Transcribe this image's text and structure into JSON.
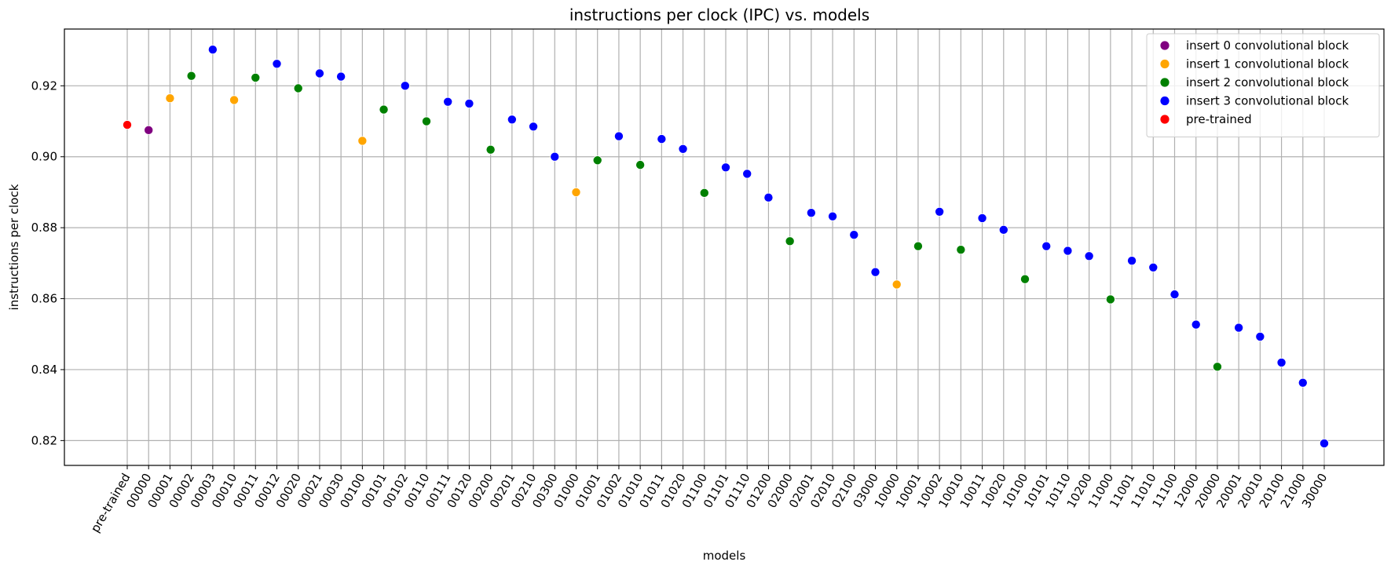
{
  "chart_data": {
    "type": "scatter",
    "title": "instructions per clock (IPC) vs. models",
    "xlabel": "models",
    "ylabel": "instructions per clock",
    "ylim": [
      0.813,
      0.936
    ],
    "yticks": [
      "0.82",
      "0.84",
      "0.86",
      "0.88",
      "0.90",
      "0.92"
    ],
    "grid": true,
    "legend_position": "top-right",
    "categories": [
      "pre-trained",
      "00000",
      "00001",
      "00002",
      "00003",
      "00010",
      "00011",
      "00012",
      "00020",
      "00021",
      "00030",
      "00100",
      "00101",
      "00102",
      "00110",
      "00111",
      "00120",
      "00200",
      "00201",
      "00210",
      "00300",
      "01000",
      "01001",
      "01002",
      "01010",
      "01011",
      "01020",
      "01100",
      "01101",
      "01110",
      "01200",
      "02000",
      "02001",
      "02010",
      "02100",
      "03000",
      "10000",
      "10001",
      "10002",
      "10010",
      "10011",
      "10020",
      "10100",
      "10101",
      "10110",
      "10200",
      "11000",
      "11001",
      "11010",
      "11100",
      "12000",
      "20000",
      "20001",
      "20010",
      "20100",
      "21000",
      "30000"
    ],
    "series": [
      {
        "name": "insert 0 convolutional block",
        "color": "#800080",
        "points": [
          {
            "x": "00000",
            "y": 0.9075
          }
        ]
      },
      {
        "name": "insert 1 convolutional block",
        "color": "#ffa500",
        "points": [
          {
            "x": "00001",
            "y": 0.9165
          },
          {
            "x": "00010",
            "y": 0.916
          },
          {
            "x": "00100",
            "y": 0.9045
          },
          {
            "x": "01000",
            "y": 0.89
          },
          {
            "x": "10000",
            "y": 0.864
          }
        ]
      },
      {
        "name": "insert 2 convolutional block",
        "color": "#008000",
        "points": [
          {
            "x": "00002",
            "y": 0.9228
          },
          {
            "x": "00011",
            "y": 0.9223
          },
          {
            "x": "00020",
            "y": 0.9193
          },
          {
            "x": "00101",
            "y": 0.9133
          },
          {
            "x": "00110",
            "y": 0.91
          },
          {
            "x": "00200",
            "y": 0.902
          },
          {
            "x": "01001",
            "y": 0.899
          },
          {
            "x": "01010",
            "y": 0.8977
          },
          {
            "x": "01100",
            "y": 0.8898
          },
          {
            "x": "02000",
            "y": 0.8762
          },
          {
            "x": "10001",
            "y": 0.8748
          },
          {
            "x": "10010",
            "y": 0.8738
          },
          {
            "x": "10100",
            "y": 0.8655
          },
          {
            "x": "11000",
            "y": 0.8598
          },
          {
            "x": "20000",
            "y": 0.8408
          }
        ]
      },
      {
        "name": "insert 3 convolutional block",
        "color": "#0000ff",
        "points": [
          {
            "x": "00003",
            "y": 0.9302
          },
          {
            "x": "00012",
            "y": 0.9262
          },
          {
            "x": "00021",
            "y": 0.9235
          },
          {
            "x": "00030",
            "y": 0.9226
          },
          {
            "x": "00102",
            "y": 0.92
          },
          {
            "x": "00111",
            "y": 0.9155
          },
          {
            "x": "00120",
            "y": 0.915
          },
          {
            "x": "00201",
            "y": 0.9105
          },
          {
            "x": "00210",
            "y": 0.9085
          },
          {
            "x": "00300",
            "y": 0.9
          },
          {
            "x": "01002",
            "y": 0.9058
          },
          {
            "x": "01011",
            "y": 0.905
          },
          {
            "x": "01020",
            "y": 0.9022
          },
          {
            "x": "01101",
            "y": 0.897
          },
          {
            "x": "01110",
            "y": 0.8952
          },
          {
            "x": "01200",
            "y": 0.8885
          },
          {
            "x": "02001",
            "y": 0.8842
          },
          {
            "x": "02010",
            "y": 0.8832
          },
          {
            "x": "02100",
            "y": 0.878
          },
          {
            "x": "03000",
            "y": 0.8675
          },
          {
            "x": "10002",
            "y": 0.8845
          },
          {
            "x": "10011",
            "y": 0.8827
          },
          {
            "x": "10020",
            "y": 0.8794
          },
          {
            "x": "10101",
            "y": 0.8748
          },
          {
            "x": "10110",
            "y": 0.8735
          },
          {
            "x": "10200",
            "y": 0.872
          },
          {
            "x": "11001",
            "y": 0.8707
          },
          {
            "x": "11010",
            "y": 0.8688
          },
          {
            "x": "11100",
            "y": 0.8612
          },
          {
            "x": "12000",
            "y": 0.8527
          },
          {
            "x": "20001",
            "y": 0.8518
          },
          {
            "x": "20010",
            "y": 0.8493
          },
          {
            "x": "20100",
            "y": 0.842
          },
          {
            "x": "21000",
            "y": 0.8363
          },
          {
            "x": "30000",
            "y": 0.8192
          }
        ]
      },
      {
        "name": "pre-trained",
        "color": "#ff0000",
        "points": [
          {
            "x": "pre-trained",
            "y": 0.909
          }
        ]
      }
    ]
  }
}
